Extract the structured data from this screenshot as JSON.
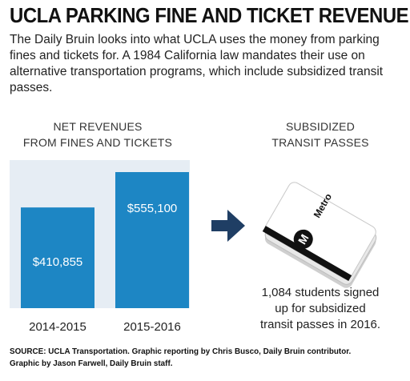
{
  "title": "UCLA PARKING FINE AND TICKET REVENUE",
  "subtitle": "The Daily Bruin looks into what UCLA uses the money from parking fines and tickets for. A 1984 California law mandates their use on alternative transportation programs, which include subsidized transit passes.",
  "chart_heading": [
    "NET REVENUES",
    "FROM FINES AND TICKETS"
  ],
  "transit_heading": [
    "SUBSIDIZED",
    "TRANSIT PASSES"
  ],
  "card_text": "Metro",
  "stat_text": [
    "1,084 students signed",
    "up for subsidized",
    "transit passes in 2016."
  ],
  "source": "SOURCE: UCLA Transportation. Graphic reporting by Chris Busco, Daily Bruin contributor. Graphic by Jason Farwell, Daily Bruin staff.",
  "colors": {
    "bar": "#1d86c4",
    "baseline_panel": "#e6edf4",
    "arrow": "#1f3e64",
    "card_stripe": "#111111"
  },
  "chart_data": {
    "type": "bar",
    "categories": [
      "2014-2015",
      "2015-2016"
    ],
    "values": [
      410855,
      555100
    ],
    "value_labels": [
      "$410,855",
      "$555,100"
    ],
    "title": "NET REVENUES FROM FINES AND TICKETS",
    "xlabel": "",
    "ylabel": "",
    "ylim": [
      0,
      555100
    ]
  }
}
